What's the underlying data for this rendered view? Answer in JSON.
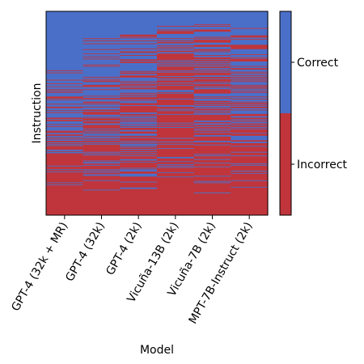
{
  "chart_data": {
    "type": "heatmap",
    "title": "",
    "xlabel": "Model",
    "ylabel": "Instruction",
    "categories": [
      "GPT-4 (32k + MR)",
      "GPT-4 (32k)",
      "GPT-4 (2k)",
      "Vicuña-13B (2k)",
      "Vicuña-7B (2k)",
      "MPT-7B-Instruct (2k)"
    ],
    "colorbar": {
      "labels": [
        "Correct",
        "Incorrect"
      ],
      "colors": {
        "Correct": "#4a6fc9",
        "Incorrect": "#c0353b"
      },
      "correct_fraction_of_bar": 0.5
    },
    "rows_sorted_by": "number of models correct (descending)",
    "correct_fraction_per_model": [
      0.68,
      0.64,
      0.59,
      0.3,
      0.38,
      0.49
    ],
    "solid_correct_top_fraction": [
      0.22,
      0.09,
      0.1,
      0.07,
      0.05,
      0.08
    ],
    "all_incorrect_bottom_fraction": 0.11
  }
}
